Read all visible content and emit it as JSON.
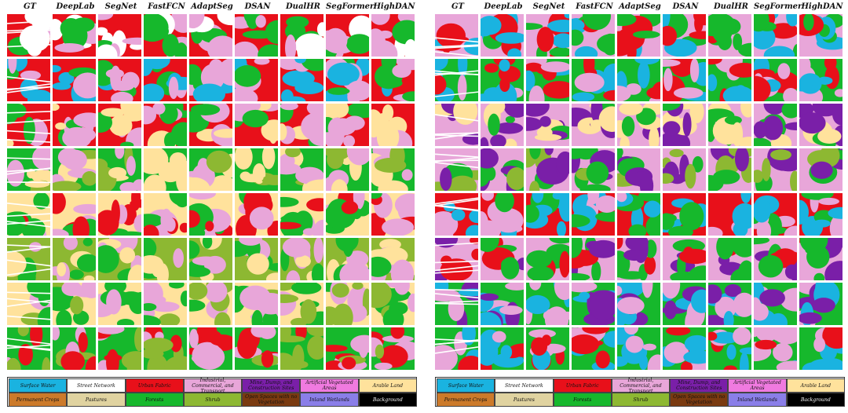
{
  "headers": [
    "GT",
    "DeepLab",
    "SegNet",
    "FastFCN",
    "AdaptSeg",
    "DSAN",
    "DualHR",
    "SegFormer",
    "HighDAN"
  ],
  "legend": [
    {
      "label": "Surface Water",
      "color": "#1ab3e0",
      "text": "#111"
    },
    {
      "label": "Street Network",
      "color": "#ffffff",
      "text": "#111"
    },
    {
      "label": "Urban Fabric",
      "color": "#e8101a",
      "text": "#111"
    },
    {
      "label": "Industrial, Commercial, and Transport",
      "color": "#e8a6d9",
      "text": "#111"
    },
    {
      "label": "Mine, Dump, and Construction Sites",
      "color": "#7a1fa8",
      "text": "#111"
    },
    {
      "label": "Artificial Vegetated Areas",
      "color": "#f07ae0",
      "text": "#111"
    },
    {
      "label": "Arable Land",
      "color": "#ffe29c",
      "text": "#111"
    },
    {
      "label": "Permanent Crops",
      "color": "#cc7a2a",
      "text": "#111"
    },
    {
      "label": "Pastures",
      "color": "#e0d3a0",
      "text": "#111"
    },
    {
      "label": "Forests",
      "color": "#16b82c",
      "text": "#111"
    },
    {
      "label": "Shrub",
      "color": "#8db832",
      "text": "#111"
    },
    {
      "label": "Open Spaces with no Vegetation",
      "color": "#7a3a10",
      "text": "#111"
    },
    {
      "label": "Inland Wetlands",
      "color": "#8a7ee8",
      "text": "#111"
    },
    {
      "label": "Background",
      "color": "#000000",
      "text": "#ffffff"
    }
  ]
}
